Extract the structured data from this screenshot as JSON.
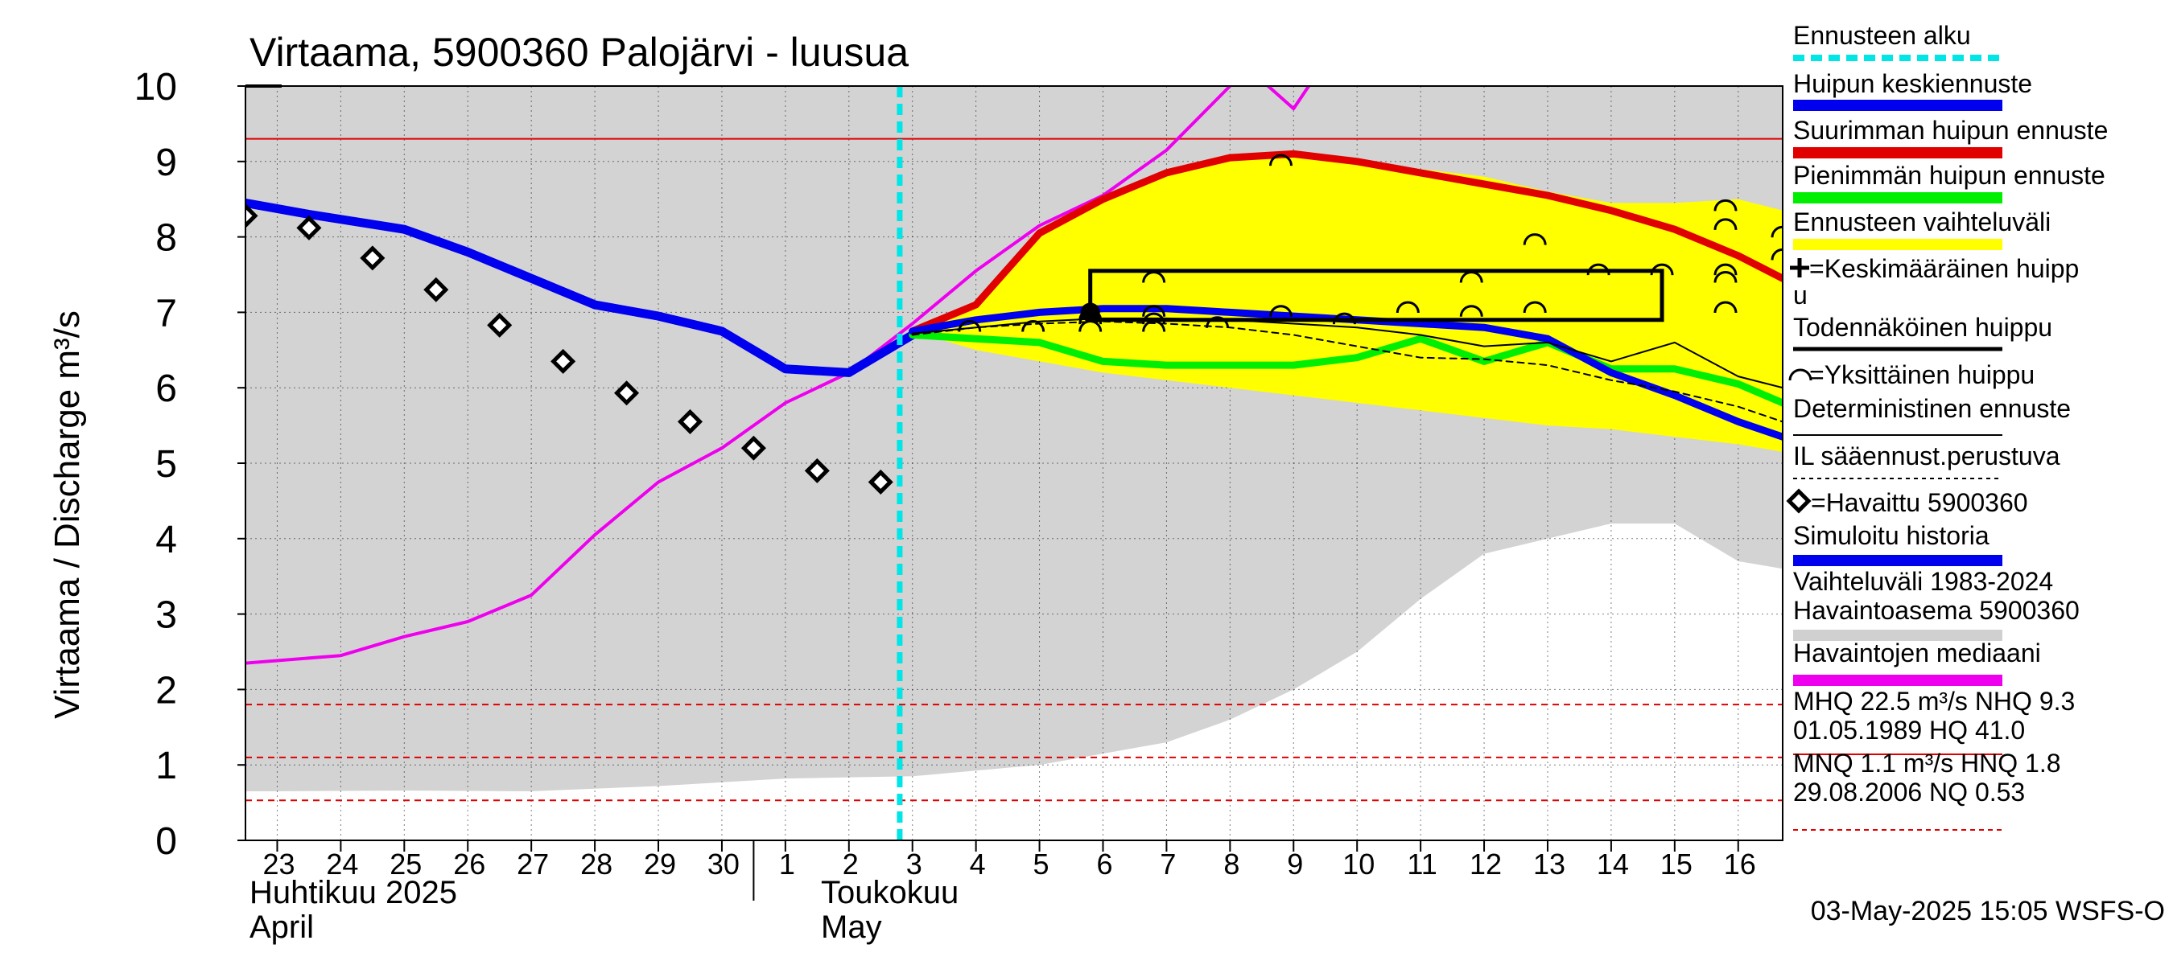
{
  "chart_data": {
    "type": "line",
    "title": "Virtaama, 5900360 Palojärvi - luusua",
    "ylabel": "Virtaama / Discharge   m³/s",
    "ylim": [
      0,
      10
    ],
    "y_ticks": [
      "0",
      "1",
      "2",
      "3",
      "4",
      "5",
      "6",
      "7",
      "8",
      "9",
      "10"
    ],
    "x_day_range": [
      22.5,
      46.7
    ],
    "x_ticks": [
      {
        "day": 23,
        "label": "23"
      },
      {
        "day": 24,
        "label": "24"
      },
      {
        "day": 25,
        "label": "25"
      },
      {
        "day": 26,
        "label": "26"
      },
      {
        "day": 27,
        "label": "27"
      },
      {
        "day": 28,
        "label": "28"
      },
      {
        "day": 29,
        "label": "29"
      },
      {
        "day": 30,
        "label": "30"
      },
      {
        "day": 31,
        "label": "1"
      },
      {
        "day": 32,
        "label": "2"
      },
      {
        "day": 33,
        "label": "3"
      },
      {
        "day": 34,
        "label": "4"
      },
      {
        "day": 35,
        "label": "5"
      },
      {
        "day": 36,
        "label": "6"
      },
      {
        "day": 37,
        "label": "7"
      },
      {
        "day": 38,
        "label": "8"
      },
      {
        "day": 39,
        "label": "9"
      },
      {
        "day": 40,
        "label": "10"
      },
      {
        "day": 41,
        "label": "11"
      },
      {
        "day": 42,
        "label": "12"
      },
      {
        "day": 43,
        "label": "13"
      },
      {
        "day": 44,
        "label": "14"
      },
      {
        "day": 45,
        "label": "15"
      },
      {
        "day": 46,
        "label": "16"
      }
    ],
    "month_labels": [
      {
        "line1": "Huhtikuu  2025",
        "line2": "April"
      },
      {
        "line1": "Toukokuu",
        "line2": "May"
      }
    ],
    "month_divider_day": 30.5,
    "forecast_start_day": 32.8,
    "history_range": {
      "name": "Vaihteluväli 1983-2024",
      "x": [
        22.5,
        23,
        25,
        27,
        29,
        31,
        33,
        35,
        37,
        38,
        39,
        40,
        41,
        42,
        43,
        44,
        45,
        46,
        46.7
      ],
      "low": [
        0.65,
        0.65,
        0.66,
        0.65,
        0.72,
        0.82,
        0.85,
        1.0,
        1.3,
        1.6,
        2.0,
        2.5,
        3.2,
        3.8,
        4.0,
        4.2,
        4.2,
        3.7,
        3.6
      ],
      "high": [
        10,
        10,
        10,
        10,
        10,
        10,
        10,
        10,
        10,
        10,
        10,
        10,
        10,
        10,
        10,
        10,
        10,
        10,
        10
      ]
    },
    "forecast_range": {
      "name": "Ennusteen vaihteluväli",
      "x": [
        33,
        34,
        35,
        36,
        37,
        38,
        39,
        40,
        41,
        42,
        43,
        44,
        45,
        46,
        46.7
      ],
      "low": [
        6.75,
        6.5,
        6.35,
        6.2,
        6.1,
        6.0,
        5.9,
        5.8,
        5.7,
        5.6,
        5.5,
        5.45,
        5.35,
        5.25,
        5.15
      ],
      "high": [
        6.8,
        7.1,
        8.05,
        8.55,
        8.85,
        9.05,
        9.1,
        9.0,
        8.9,
        8.8,
        8.6,
        8.45,
        8.45,
        8.5,
        8.35
      ]
    },
    "reference_lines": [
      {
        "name": "NHQ",
        "value": 9.3,
        "style": "solid",
        "color": "#e00000"
      },
      {
        "name": "HNQ",
        "value": 1.8,
        "style": "dashed",
        "color": "#e00000"
      },
      {
        "name": "MNQ",
        "value": 1.1,
        "style": "dashed",
        "color": "#e00000"
      },
      {
        "name": "NQ",
        "value": 0.53,
        "style": "dashed",
        "color": "#e00000"
      }
    ],
    "series": [
      {
        "name": "Havaintojen mediaani",
        "color": "#ee00ee",
        "width": 4,
        "x": [
          22.5,
          24,
          25,
          26,
          27,
          28,
          29,
          30,
          31,
          32,
          33,
          34,
          35,
          36,
          37,
          38,
          38.2,
          39,
          39.4
        ],
        "y": [
          2.35,
          2.45,
          2.7,
          2.9,
          3.25,
          4.05,
          4.75,
          5.2,
          5.8,
          6.2,
          6.85,
          7.55,
          8.15,
          8.55,
          9.15,
          10.0,
          10.3,
          9.7,
          10.2
        ]
      },
      {
        "name": "Simuloitu historia",
        "color": "#0000ee",
        "width": 11,
        "x": [
          22.5,
          23.5,
          25,
          26,
          27,
          28,
          29,
          30,
          31,
          32,
          33
        ],
        "y": [
          8.45,
          8.3,
          8.1,
          7.8,
          7.45,
          7.1,
          6.95,
          6.75,
          6.25,
          6.2,
          6.7
        ]
      },
      {
        "name": "Suurimman huipun ennuste",
        "color": "#e00000",
        "width": 9,
        "x": [
          33,
          34,
          35,
          36,
          37,
          38,
          39,
          40,
          41,
          42,
          43,
          44,
          45,
          46,
          46.7
        ],
        "y": [
          6.75,
          7.1,
          8.05,
          8.5,
          8.85,
          9.05,
          9.1,
          9.0,
          8.85,
          8.7,
          8.55,
          8.35,
          8.1,
          7.75,
          7.45
        ]
      },
      {
        "name": "Pienimmän huipun ennuste",
        "color": "#00ee00",
        "width": 9,
        "x": [
          33,
          34,
          35,
          36,
          37,
          38,
          39,
          40,
          41,
          42,
          43,
          44,
          45,
          46,
          46.7
        ],
        "y": [
          6.7,
          6.65,
          6.6,
          6.35,
          6.3,
          6.3,
          6.3,
          6.4,
          6.65,
          6.35,
          6.6,
          6.25,
          6.25,
          6.05,
          5.8
        ]
      },
      {
        "name": "Huipun keskiennuste",
        "color": "#0000ee",
        "width": 9,
        "x": [
          33,
          34,
          35,
          36,
          37,
          38,
          39,
          40,
          41,
          42,
          43,
          44,
          45,
          46,
          46.7
        ],
        "y": [
          6.75,
          6.9,
          7.0,
          7.05,
          7.05,
          7.0,
          6.95,
          6.9,
          6.85,
          6.8,
          6.65,
          6.2,
          5.9,
          5.55,
          5.35
        ]
      },
      {
        "name": "Deterministinen ennuste",
        "color": "#000000",
        "width": 2,
        "x": [
          33,
          34,
          35,
          36,
          37,
          38,
          39,
          40,
          41,
          42,
          43,
          44,
          45,
          46,
          46.7
        ],
        "y": [
          6.72,
          6.8,
          6.88,
          6.92,
          6.92,
          6.9,
          6.85,
          6.8,
          6.7,
          6.55,
          6.6,
          6.35,
          6.6,
          6.15,
          6.0
        ]
      },
      {
        "name": "IL sääennust.perustuva",
        "color": "#000000",
        "width": 2,
        "dash": "8,6",
        "x": [
          33,
          34,
          35,
          36,
          37,
          38,
          39,
          40,
          41,
          42,
          43,
          44,
          45,
          46,
          46.7
        ],
        "y": [
          6.7,
          6.8,
          6.85,
          6.88,
          6.85,
          6.8,
          6.7,
          6.55,
          6.4,
          6.38,
          6.3,
          6.1,
          5.95,
          5.75,
          5.55
        ]
      }
    ],
    "observed": {
      "name": "Havaittu 5900360",
      "x": [
        22.5,
        23.5,
        24.5,
        25.5,
        26.5,
        27.5,
        28.5,
        29.5,
        30.5,
        31.5,
        32.5
      ],
      "y": [
        8.28,
        8.12,
        7.72,
        7.3,
        6.83,
        6.35,
        5.93,
        5.55,
        5.2,
        4.9,
        4.75
      ]
    },
    "individual_peaks": {
      "name": "Yksittäinen huippu",
      "x": [
        33.9,
        34.9,
        35.8,
        36.8,
        37.8,
        38.8,
        39.8,
        40.8,
        41.8,
        42.8,
        43.8,
        44.8,
        45.8,
        46.7
      ],
      "y": [
        [
          6.85
        ],
        [
          6.85
        ],
        [
          6.85,
          6.95,
          7.0
        ],
        [
          6.85,
          6.95,
          7.05,
          7.5
        ],
        [
          6.9
        ],
        [
          7.05,
          9.05
        ],
        [
          6.95
        ],
        [
          7.1
        ],
        [
          7.05,
          7.5
        ],
        [
          7.1,
          8.0
        ],
        [
          7.6
        ],
        [
          7.6
        ],
        [
          7.1,
          7.5,
          7.6,
          8.2,
          8.45
        ],
        [
          7.8,
          8.1
        ]
      ]
    },
    "peak_box": {
      "x0": 35.8,
      "x1": 44.8,
      "y0": 6.9,
      "y1": 7.55
    },
    "mean_peak": {
      "x": 35.8,
      "y": 7.0
    },
    "legend": [
      {
        "label": "Ennusteen alku",
        "kind": "dashed",
        "color": "#00e5e5"
      },
      {
        "label": "Huipun keskiennuste",
        "kind": "bar",
        "color": "#0000ee"
      },
      {
        "label": "Suurimman huipun ennuste",
        "kind": "bar",
        "color": "#e00000"
      },
      {
        "label": "Pienimmän huipun ennuste",
        "kind": "bar",
        "color": "#00ee00"
      },
      {
        "label": "Ennusteen vaihteluväli",
        "kind": "bar",
        "color": "#ffff00"
      },
      {
        "label": "=Keskimääräinen huipp",
        "label2": "u",
        "kind": "plus",
        "color": "#000000"
      },
      {
        "label": "Todennäköinen huippu",
        "kind": "line",
        "color": "#000000"
      },
      {
        "label": "=Yksittäinen huippu",
        "kind": "arc",
        "color": "#000000"
      },
      {
        "label": "Deterministinen ennuste",
        "kind": "thin",
        "color": "#000000"
      },
      {
        "label": "IL sääennust.perustuva",
        "kind": "dotted",
        "color": "#000000"
      },
      {
        "label": "=Havaittu 5900360",
        "kind": "diamond",
        "color": "#000000"
      },
      {
        "label": "Simuloitu historia",
        "kind": "bar",
        "color": "#0000ee"
      },
      {
        "label": "Vaihteluväli 1983-2024",
        "label2": " Havaintoasema 5900360",
        "kind": "bar",
        "color": "#d0d0d0"
      },
      {
        "label": "Havaintojen mediaani",
        "kind": "bar",
        "color": "#ee00ee"
      },
      {
        "label": "MHQ 22.5 m³/s NHQ  9.3",
        "label2": "01.05.1989 HQ 41.0",
        "kind": "redline",
        "color": "#e00000"
      },
      {
        "label": "MNQ  1.1 m³/s HNQ  1.8",
        "label2": "29.08.2006 NQ 0.53",
        "kind": "reddash",
        "color": "#e00000"
      }
    ],
    "footer": "03-May-2025 15:05 WSFS-O"
  }
}
